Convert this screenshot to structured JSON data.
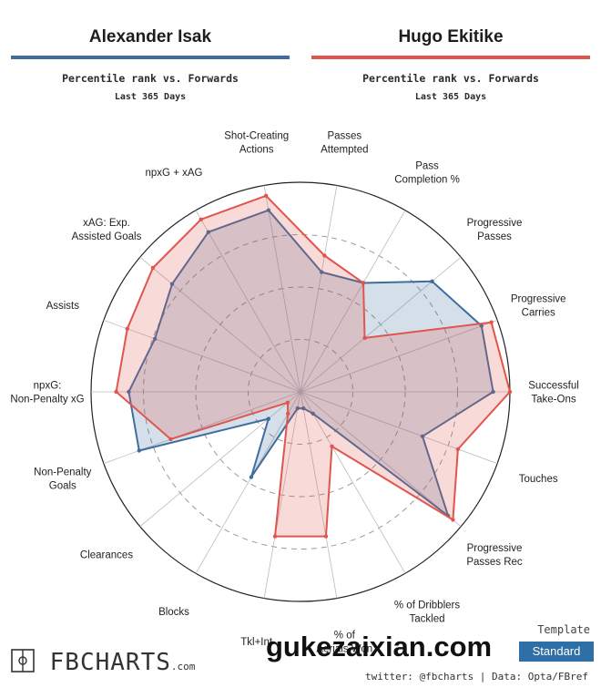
{
  "left_header": {
    "name": "Alexander Isak",
    "subtitle": "Percentile rank vs. Forwards",
    "period": "Last 365 Days"
  },
  "right_header": {
    "name": "Hugo Ekitike",
    "subtitle": "Percentile rank vs. Forwards",
    "period": "Last 365 Days"
  },
  "chart_data": {
    "type": "radar",
    "range": [
      0,
      100
    ],
    "categories": [
      "Passes Attempted",
      "Pass Completion %",
      "Progressive Passes",
      "Progressive Carries",
      "Successful Take-Ons",
      "Touches",
      "Progressive Passes Rec",
      "% of Dribblers Tackled",
      "% of Aerials Won",
      "Tkl+Int",
      "Blocks",
      "Clearances",
      "Non-Penalty Goals",
      "npxG: Non-Penalty xG",
      "Assists",
      "xAG: Exp. Assisted Goals",
      "npxG + xAG",
      "Shot-Creating Actions"
    ],
    "series": [
      {
        "name": "Alexander Isak",
        "color": "#3f6e9e",
        "values": [
          58,
          60,
          82,
          92,
          92,
          62,
          92,
          12,
          8,
          8,
          47,
          20,
          82,
          82,
          74,
          80,
          88,
          88
        ]
      },
      {
        "name": "Hugo Ekitike",
        "color": "#e0554d",
        "values": [
          66,
          60,
          40,
          97,
          100,
          80,
          95,
          30,
          70,
          70,
          12,
          8,
          66,
          88,
          88,
          92,
          95,
          95
        ]
      }
    ]
  },
  "watermark": "gukezaixian.com",
  "footer": {
    "logo": "FBCHARTS",
    "logo_suffix": ".com",
    "credit": "twitter: @fbcharts | Data: Opta/FBref",
    "template_label": "Template",
    "template_value": "Standard"
  }
}
